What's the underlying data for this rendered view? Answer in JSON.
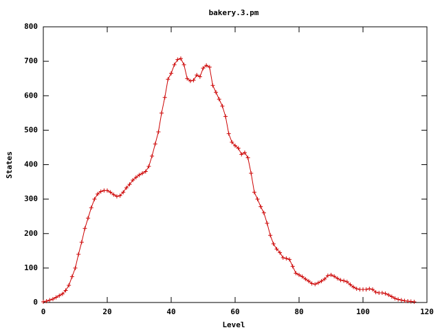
{
  "chart_data": {
    "type": "line",
    "title": "bakery.3.pm",
    "x_label": "Level",
    "y_label": "States",
    "x": [
      0,
      1,
      2,
      3,
      4,
      5,
      6,
      7,
      8,
      9,
      10,
      11,
      12,
      13,
      14,
      15,
      16,
      17,
      18,
      19,
      20,
      21,
      22,
      23,
      24,
      25,
      26,
      27,
      28,
      29,
      30,
      31,
      32,
      33,
      34,
      35,
      36,
      37,
      38,
      39,
      40,
      41,
      42,
      43,
      44,
      45,
      46,
      47,
      48,
      49,
      50,
      51,
      52,
      53,
      54,
      55,
      56,
      57,
      58,
      59,
      60,
      61,
      62,
      63,
      64,
      65,
      66,
      67,
      68,
      69,
      70,
      71,
      72,
      73,
      74,
      75,
      76,
      77,
      78,
      79,
      80,
      81,
      82,
      83,
      84,
      85,
      86,
      87,
      88,
      89,
      90,
      91,
      92,
      93,
      94,
      95,
      96,
      97,
      98,
      99,
      100,
      101,
      102,
      103,
      104,
      105,
      106,
      107,
      108,
      109,
      110,
      111,
      112,
      113,
      114,
      115,
      116
    ],
    "series": [
      {
        "color": "#cc0000",
        "values": [
          2,
          4,
          7,
          10,
          15,
          20,
          25,
          35,
          50,
          75,
          100,
          140,
          175,
          215,
          245,
          275,
          300,
          315,
          322,
          325,
          325,
          320,
          313,
          308,
          310,
          320,
          333,
          343,
          355,
          363,
          370,
          375,
          380,
          395,
          425,
          460,
          495,
          550,
          595,
          648,
          665,
          690,
          705,
          708,
          690,
          650,
          643,
          645,
          660,
          655,
          680,
          688,
          683,
          630,
          610,
          590,
          570,
          540,
          490,
          465,
          455,
          448,
          430,
          435,
          420,
          375,
          320,
          300,
          278,
          260,
          230,
          195,
          170,
          155,
          145,
          130,
          128,
          125,
          105,
          85,
          80,
          75,
          68,
          62,
          55,
          53,
          57,
          62,
          68,
          78,
          80,
          76,
          70,
          65,
          63,
          60,
          52,
          45,
          40,
          38,
          38,
          38,
          40,
          38,
          30,
          28,
          28,
          26,
          22,
          17,
          12,
          9,
          7,
          5,
          4,
          3,
          2
        ]
      }
    ],
    "xlim": [
      0,
      120
    ],
    "xticks": [
      0,
      20,
      40,
      60,
      80,
      100,
      120
    ],
    "ylim": [
      0,
      800
    ],
    "yticks": [
      0,
      100,
      200,
      300,
      400,
      500,
      600,
      700,
      800
    ]
  }
}
